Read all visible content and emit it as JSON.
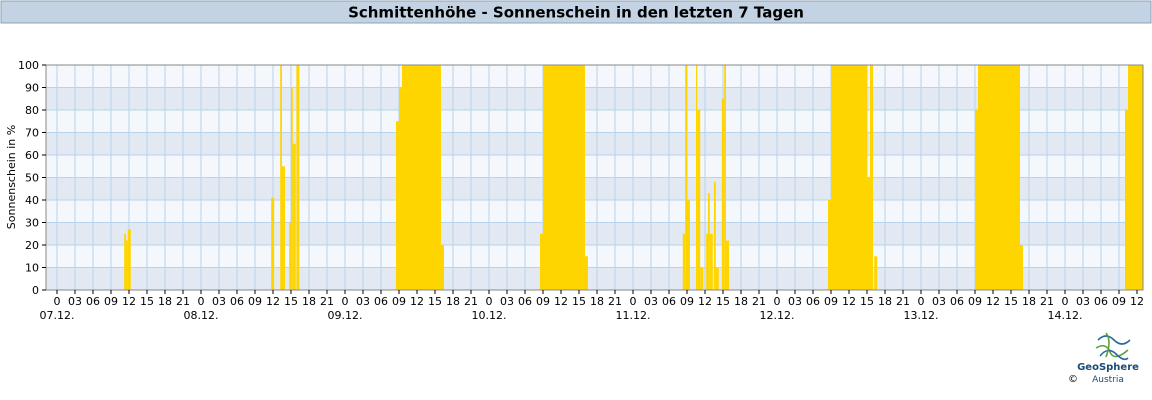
{
  "chart_data": {
    "type": "bar",
    "title": "Schmittenhöhe - Sonnenschein in den letzten 7 Tagen",
    "y_label": "Sonnenschein in %",
    "color": "#ffd500",
    "grid": true,
    "xlim": [
      -1.83,
      181
    ],
    "ylim": [
      0,
      100
    ],
    "yticks": [
      0,
      10,
      20,
      30,
      40,
      50,
      60,
      70,
      80,
      90,
      100
    ],
    "xticks": [
      0,
      {
        "value": 3,
        "label": "03"
      },
      {
        "value": 6,
        "label": "06"
      },
      {
        "value": 9,
        "label": "09"
      },
      12,
      15,
      18,
      21,
      {
        "value": 24,
        "label": "0"
      },
      {
        "value": 27,
        "label": "03"
      },
      {
        "value": 30,
        "label": "06"
      },
      {
        "value": 33,
        "label": "09"
      },
      {
        "value": 36,
        "label": "12"
      },
      {
        "value": 39,
        "label": "15"
      },
      {
        "value": 42,
        "label": "18"
      },
      {
        "value": 45,
        "label": "21"
      },
      {
        "value": 48,
        "label": "0"
      },
      {
        "value": 51,
        "label": "03"
      },
      {
        "value": 54,
        "label": "06"
      },
      {
        "value": 57,
        "label": "09"
      },
      {
        "value": 60,
        "label": "12"
      },
      {
        "value": 63,
        "label": "15"
      },
      {
        "value": 66,
        "label": "18"
      },
      {
        "value": 69,
        "label": "21"
      },
      {
        "value": 72,
        "label": "0"
      },
      {
        "value": 75,
        "label": "03"
      },
      {
        "value": 78,
        "label": "06"
      },
      {
        "value": 81,
        "label": "09"
      },
      {
        "value": 84,
        "label": "12"
      },
      {
        "value": 87,
        "label": "15"
      },
      {
        "value": 90,
        "label": "18"
      },
      {
        "value": 93,
        "label": "21"
      },
      {
        "value": 96,
        "label": "0"
      },
      {
        "value": 99,
        "label": "03"
      },
      {
        "value": 102,
        "label": "06"
      },
      {
        "value": 105,
        "label": "09"
      },
      {
        "value": 108,
        "label": "12"
      },
      {
        "value": 111,
        "label": "15"
      },
      {
        "value": 114,
        "label": "18"
      },
      {
        "value": 117,
        "label": "21"
      },
      {
        "value": 120,
        "label": "0"
      },
      {
        "value": 123,
        "label": "03"
      },
      {
        "value": 126,
        "label": "06"
      },
      {
        "value": 129,
        "label": "09"
      },
      {
        "value": 132,
        "label": "12"
      },
      {
        "value": 135,
        "label": "15"
      },
      {
        "value": 138,
        "label": "18"
      },
      {
        "value": 141,
        "label": "21"
      },
      {
        "value": 144,
        "label": "0"
      },
      {
        "value": 147,
        "label": "03"
      },
      {
        "value": 150,
        "label": "06"
      },
      {
        "value": 153,
        "label": "09"
      },
      {
        "value": 156,
        "label": "12"
      },
      {
        "value": 159,
        "label": "15"
      },
      {
        "value": 162,
        "label": "18"
      },
      {
        "value": 165,
        "label": "21"
      },
      {
        "value": 168,
        "label": "0"
      },
      {
        "value": 171,
        "label": "03"
      },
      {
        "value": 174,
        "label": "06"
      },
      {
        "value": 177,
        "label": "09"
      },
      {
        "value": 180,
        "label": "12"
      }
    ],
    "day_labels": [
      {
        "value": 0,
        "label": "07.12."
      },
      {
        "value": 24,
        "label": "08.12."
      },
      {
        "value": 48,
        "label": "09.12."
      },
      {
        "value": 72,
        "label": "10.12."
      },
      {
        "value": 96,
        "label": "11.12."
      },
      {
        "value": 120,
        "label": "12.12."
      },
      {
        "value": 144,
        "label": "13.12."
      },
      {
        "value": 168,
        "label": "14.12."
      }
    ],
    "x": [
      11.2,
      11.5,
      11.8,
      35.7,
      37.2,
      37.5,
      38.7,
      39.0,
      39.3,
      39.9,
      56.5,
      57,
      57.5,
      58,
      58.5,
      59,
      59.5,
      60,
      60.5,
      61,
      61.5,
      62,
      62.5,
      63,
      63.5,
      64,
      80.5,
      81,
      81.5,
      82,
      82.5,
      83,
      83.5,
      84,
      84.5,
      85,
      85.5,
      86,
      86.5,
      87,
      87.5,
      88,
      104.3,
      104.7,
      105.0,
      106.5,
      106.7,
      107.2,
      108.2,
      108.5,
      108.8,
      109.5,
      109.8,
      110.8,
      111.2,
      111.5,
      128.5,
      129,
      129.5,
      130,
      130.5,
      131,
      131.5,
      132,
      132.5,
      133,
      133.5,
      134,
      134.5,
      135,
      135.5,
      136.2,
      153,
      153.5,
      154,
      154.5,
      155,
      155.5,
      156,
      156.5,
      157,
      157.5,
      158,
      158.5,
      159,
      159.5,
      160,
      160.5,
      178,
      178.5,
      179,
      179.5,
      180,
      180.5
    ],
    "values": [
      25,
      22,
      27,
      41,
      100,
      55,
      30,
      90,
      65,
      100,
      75,
      90,
      100,
      100,
      100,
      100,
      100,
      100,
      100,
      100,
      100,
      100,
      100,
      100,
      100,
      20,
      25,
      100,
      100,
      100,
      100,
      100,
      100,
      100,
      100,
      100,
      100,
      100,
      100,
      100,
      100,
      15,
      25,
      100,
      40,
      100,
      80,
      10,
      25,
      43,
      25,
      48,
      10,
      85,
      100,
      22,
      40,
      100,
      100,
      100,
      100,
      100,
      100,
      100,
      100,
      100,
      100,
      100,
      100,
      50,
      100,
      15,
      80,
      100,
      100,
      100,
      100,
      100,
      100,
      100,
      100,
      100,
      100,
      100,
      100,
      100,
      100,
      20,
      80,
      100,
      100,
      100,
      100,
      100
    ]
  },
  "logo": {
    "name": "GeoSphere",
    "sub": "Austria",
    "copyright": "©"
  }
}
